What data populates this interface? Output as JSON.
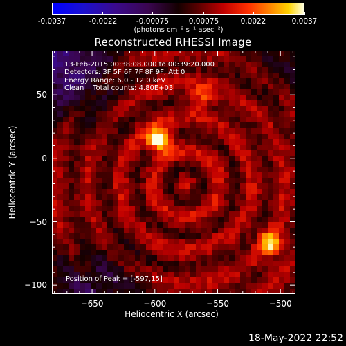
{
  "chart_data": {
    "type": "heatmap",
    "title": "Reconstructed RHESSI Image",
    "xlabel": "Heliocentric X (arcsec)",
    "ylabel": "Heliocentric Y (arcsec)",
    "xlim": [
      -682,
      -488
    ],
    "ylim": [
      -107,
      85
    ],
    "xticks": [
      -650,
      -600,
      -550,
      -500
    ],
    "yticks": [
      50,
      0,
      -50,
      -100
    ],
    "colorbar": {
      "ticks": [
        "-0.0037",
        "-0.0022",
        "-0.00075",
        "0.00075",
        "0.0022",
        "0.0037"
      ],
      "units": "(photons cm⁻² s⁻¹ asec⁻²)",
      "range": [
        -0.0037,
        0.0037
      ]
    },
    "sources": [
      {
        "x": -597,
        "y": 15,
        "value": 0.0037
      },
      {
        "x": -508,
        "y": -67,
        "value": 0.0024
      },
      {
        "x": -562,
        "y": 48,
        "value": 0.0015
      }
    ],
    "annotations": [
      "13-Feb-2015 00:38:08.000 to 00:39:20.000",
      "Detectors: 3F 5F 6F 7F 8F 9F, Att 0",
      "Energy Range: 6.0 - 12.0 keV",
      "Clean    Total counts: 4.80E+03"
    ],
    "peak_label": "Position of Peak = [-597,15]"
  },
  "datestamp": "18-May-2022 22:52",
  "colors": {
    "background": "#000000",
    "foreground": "#ffffff"
  }
}
